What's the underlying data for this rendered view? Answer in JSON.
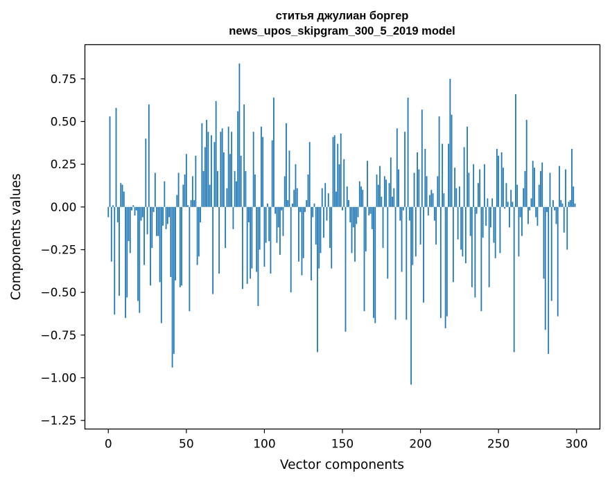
{
  "chart_data": {
    "type": "bar",
    "title": "ститья джулиан боргер",
    "subtitle": "news_upos_skipgram_300_5_2019 model",
    "xlabel": "Vector components",
    "ylabel": "Components values",
    "xlim": [
      -15,
      315
    ],
    "ylim": [
      -1.3,
      0.95
    ],
    "x_ticks": [
      0,
      50,
      100,
      150,
      200,
      250,
      300
    ],
    "y_ticks": [
      0.75,
      0.5,
      0.25,
      0.0,
      -0.25,
      -0.5,
      -0.75,
      -1.0,
      -1.25
    ],
    "y_tick_labels": [
      "0.75",
      "0.50",
      "0.25",
      "0.00",
      "−0.25",
      "−0.50",
      "−0.75",
      "−1.00",
      "−1.25"
    ],
    "grid": false,
    "bar_color": "#1f77b4",
    "x": [
      0,
      1,
      2,
      3,
      4,
      5,
      6,
      7,
      8,
      9,
      10,
      11,
      12,
      13,
      14,
      15,
      16,
      17,
      18,
      19,
      20,
      21,
      22,
      23,
      24,
      25,
      26,
      27,
      28,
      29,
      30,
      31,
      32,
      33,
      34,
      35,
      36,
      37,
      38,
      39,
      40,
      41,
      42,
      43,
      44,
      45,
      46,
      47,
      48,
      49,
      50,
      51,
      52,
      53,
      54,
      55,
      56,
      57,
      58,
      59,
      60,
      61,
      62,
      63,
      64,
      65,
      66,
      67,
      68,
      69,
      70,
      71,
      72,
      73,
      74,
      75,
      76,
      77,
      78,
      79,
      80,
      81,
      82,
      83,
      84,
      85,
      86,
      87,
      88,
      89,
      90,
      91,
      92,
      93,
      94,
      95,
      96,
      97,
      98,
      99,
      100,
      101,
      102,
      103,
      104,
      105,
      106,
      107,
      108,
      109,
      110,
      111,
      112,
      113,
      114,
      115,
      116,
      117,
      118,
      119,
      120,
      121,
      122,
      123,
      124,
      125,
      126,
      127,
      128,
      129,
      130,
      131,
      132,
      133,
      134,
      135,
      136,
      137,
      138,
      139,
      140,
      141,
      142,
      143,
      144,
      145,
      146,
      147,
      148,
      149,
      150,
      151,
      152,
      153,
      154,
      155,
      156,
      157,
      158,
      159,
      160,
      161,
      162,
      163,
      164,
      165,
      166,
      167,
      168,
      169,
      170,
      171,
      172,
      173,
      174,
      175,
      176,
      177,
      178,
      179,
      180,
      181,
      182,
      183,
      184,
      185,
      186,
      187,
      188,
      189,
      190,
      191,
      192,
      193,
      194,
      195,
      196,
      197,
      198,
      199,
      200,
      201,
      202,
      203,
      204,
      205,
      206,
      207,
      208,
      209,
      210,
      211,
      212,
      213,
      214,
      215,
      216,
      217,
      218,
      219,
      220,
      221,
      222,
      223,
      224,
      225,
      226,
      227,
      228,
      229,
      230,
      231,
      232,
      233,
      234,
      235,
      236,
      237,
      238,
      239,
      240,
      241,
      242,
      243,
      244,
      245,
      246,
      247,
      248,
      249,
      250,
      251,
      252,
      253,
      254,
      255,
      256,
      257,
      258,
      259,
      260,
      261,
      262,
      263,
      264,
      265,
      266,
      267,
      268,
      269,
      270,
      271,
      272,
      273,
      274,
      275,
      276,
      277,
      278,
      279,
      280,
      281,
      282,
      283,
      284,
      285,
      286,
      287,
      288,
      289,
      290,
      291,
      292,
      293,
      294,
      295,
      296,
      297,
      298,
      299
    ],
    "values": [
      -0.06,
      0.53,
      -0.32,
      0.01,
      -0.63,
      0.58,
      -0.09,
      -0.52,
      0.14,
      0.13,
      0.09,
      -0.65,
      -0.53,
      -0.2,
      -0.27,
      -0.02,
      0.01,
      -0.05,
      -0.02,
      -0.55,
      -0.62,
      -0.08,
      -0.06,
      -0.34,
      0.4,
      -0.16,
      0.6,
      -0.46,
      -0.24,
      -0.03,
      0.2,
      -0.17,
      -0.17,
      -0.44,
      -0.68,
      -0.11,
      0.15,
      -0.13,
      -0.1,
      -0.06,
      -0.41,
      -0.94,
      -0.86,
      -0.43,
      0.07,
      0.2,
      -0.47,
      -0.46,
      0.13,
      0.19,
      0.31,
      0.01,
      -0.61,
      0.04,
      0.18,
      0.04,
      0.3,
      -0.34,
      -0.29,
      -0.09,
      0.49,
      0.21,
      0.35,
      0.51,
      0.44,
      0.13,
      0.42,
      -0.51,
      0.38,
      0.62,
      0.21,
      -0.39,
      0.44,
      0.46,
      0.32,
      -0.24,
      0.11,
      0.47,
      0.31,
      0.44,
      -0.13,
      0.21,
      0.15,
      0.56,
      0.84,
      0.3,
      -0.48,
      0.6,
      0.21,
      -0.45,
      -0.09,
      -0.42,
      -0.36,
      0.44,
      0.19,
      -0.38,
      -0.58,
      -0.25,
      0.47,
      0.41,
      -0.35,
      -0.21,
      0.02,
      -0.2,
      -0.39,
      0.39,
      0.64,
      -0.04,
      -0.21,
      -0.12,
      -0.28,
      -0.02,
      -0.17,
      0.18,
      0.49,
      0.04,
      0.33,
      -0.5,
      0.02,
      0.1,
      0.25,
      0.11,
      -0.32,
      -0.03,
      -0.4,
      -0.3,
      -0.03,
      0.04,
      0.19,
      0.38,
      -0.43,
      -0.06,
      0.02,
      -0.22,
      -0.85,
      -0.36,
      -0.27,
      0.11,
      -0.18,
      0.14,
      -0.08,
      0.08,
      -0.24,
      -0.36,
      0.41,
      0.42,
      0.09,
      0.37,
      0.25,
      0.43,
      -0.02,
      0.28,
      -0.73,
      0.12,
      0.04,
      -0.09,
      -0.27,
      -0.12,
      -0.32,
      -0.1,
      -0.06,
      0.15,
      0.12,
      0.1,
      -0.61,
      -0.26,
      0.27,
      -0.05,
      -0.04,
      -0.13,
      -0.65,
      -0.68,
      0.19,
      0.13,
      0.24,
      0.06,
      -0.24,
      0.18,
      0.16,
      -0.42,
      0.14,
      0.29,
      0.06,
      0.11,
      -0.66,
      0.46,
      0.22,
      -0.08,
      -0.38,
      -0.02,
      0.44,
      -0.66,
      0.64,
      -0.08,
      -1.04,
      -0.34,
      0.2,
      -0.29,
      0.32,
      0.22,
      -0.22,
      0.57,
      -0.56,
      0.34,
      0.18,
      -0.05,
      0.07,
      0.1,
      0.08,
      -0.08,
      -0.22,
      0.18,
      0.53,
      -0.65,
      0.37,
      0.08,
      -0.71,
      -0.64,
      0.37,
      0.75,
      0.54,
      -0.44,
      0.23,
      0.11,
      -0.19,
      0.12,
      -0.25,
      -0.29,
      0.35,
      -0.33,
      0.47,
      0.2,
      -0.17,
      -0.47,
      0.25,
      -0.53,
      -0.04,
      0.14,
      0.22,
      -0.61,
      -0.18,
      0.25,
      -0.11,
      0.05,
      -0.47,
      -0.12,
      0.05,
      -0.21,
      -0.3,
      0.34,
      0.3,
      -0.27,
      0.32,
      0.23,
      -0.01,
      0.14,
      0.03,
      -0.12,
      0.1,
      0.03,
      -0.85,
      0.66,
      0.13,
      -0.29,
      -0.06,
      -0.17,
      0.11,
      0.21,
      0.51,
      -0.1,
      -0.02,
      0.05,
      0.27,
      0.23,
      -0.06,
      -0.11,
      0.13,
      0.21,
      0.26,
      -0.42,
      -0.72,
      -0.03,
      -0.86,
      0.2,
      -0.55,
      0.04,
      -0.02,
      -0.1,
      -0.64,
      0.24,
      0.04,
      0.02,
      -0.15,
      0.22,
      -0.25,
      0.03,
      0.04,
      0.34,
      0.12,
      0.02
    ]
  }
}
